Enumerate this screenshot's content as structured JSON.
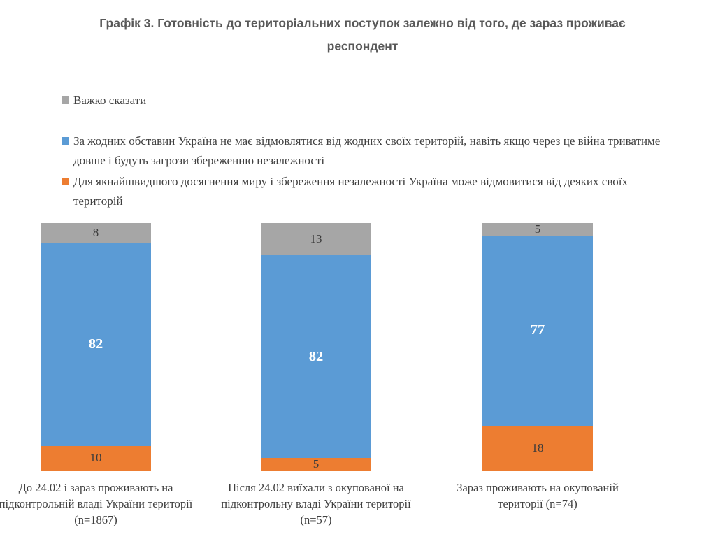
{
  "title_lines": [
    "Графік 3. Готовність до територіальних поступок залежно від того, де зараз проживає",
    "респондент"
  ],
  "colors": {
    "blue": "#5B9BD5",
    "orange": "#ED7D31",
    "gray": "#A6A6A6",
    "title_text": "#595959",
    "body_text": "#404040",
    "value_dark": "#3b3b3b",
    "value_light": "#ffffff"
  },
  "legend": [
    {
      "label": "Важко сказати",
      "color": "#A6A6A6"
    },
    {
      "label": "За жодних обставин Україна не має відмовлятися від жодних своїх територій, навіть якщо через це війна триватиме довше і будуть загрози збереженню незалежності",
      "color": "#5B9BD5"
    },
    {
      "label": "Для якнайшвидшого досягнення миру і збереження незалежності Україна може відмовитися від деяких своїх територій",
      "color": "#ED7D31"
    }
  ],
  "chart_data": {
    "type": "bar",
    "stacked": true,
    "orientation": "vertical",
    "title": "Графік 3. Готовність до територіальних поступок залежно від того, де зараз проживає респондент",
    "categories": [
      "До 24.02 і зараз проживають на підконтрольній владі України території (n=1867)",
      "Після 24.02 виїхали з окупованої на підконтрольну владі України території (n=57)",
      "Зараз проживають на окупованій території (n=74)"
    ],
    "series": [
      {
        "name": "Для якнайшвидшого досягнення миру і збереження незалежності Україна може відмовитися від деяких своїх територій",
        "color": "#ED7D31",
        "values": [
          10,
          5,
          18
        ],
        "value_label_color": "#3b3b3b",
        "value_label_bold": false
      },
      {
        "name": "За жодних обставин Україна не має відмовлятися від жодних своїх територій, навіть якщо через це війна триватиме довше і будуть загрози збереженню незалежності",
        "color": "#5B9BD5",
        "values": [
          82,
          82,
          77
        ],
        "value_label_color": "#ffffff",
        "value_label_bold": true
      },
      {
        "name": "Важко сказати",
        "color": "#A6A6A6",
        "values": [
          8,
          13,
          5
        ],
        "value_label_color": "#3b3b3b",
        "value_label_bold": false
      }
    ],
    "ylim": [
      0,
      100
    ],
    "grid": false,
    "axes_visible": false,
    "legend_position": "top-left",
    "value_labels": "inside-center"
  }
}
